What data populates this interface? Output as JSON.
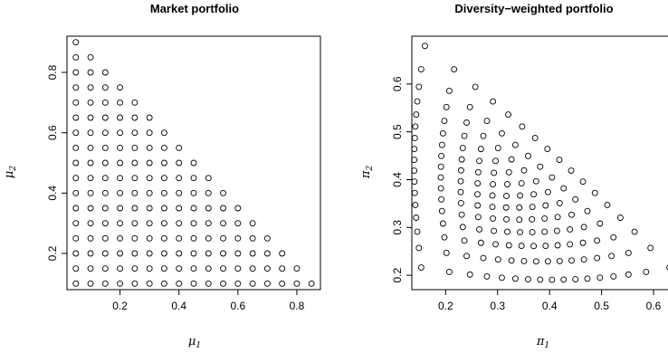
{
  "chart_data": [
    {
      "type": "scatter",
      "title": "Market portfolio",
      "xlabel": "μ",
      "xlabel_sub": "1",
      "ylabel": "μ",
      "ylabel_sub": "2",
      "xlim": [
        0.02,
        0.88
      ],
      "ylim": [
        0.08,
        0.92
      ],
      "xticks": [
        0.2,
        0.4,
        0.6,
        0.8
      ],
      "yticks": [
        0.2,
        0.4,
        0.6,
        0.8
      ],
      "grid": false,
      "points": "triangular grid: mu1 = 0.05..0.85 step 0.05, mu2 = 0.10..0.90 step 0.05, mu1 + mu2 <= 0.95"
    },
    {
      "type": "scatter",
      "title": "Diversity−weighted portfolio",
      "xlabel": "π",
      "xlabel_sub": "1",
      "ylabel": "π",
      "ylabel_sub": "2",
      "xlim": [
        0.135,
        0.64
      ],
      "ylim": [
        0.17,
        0.7
      ],
      "xticks": [
        0.2,
        0.3,
        0.4,
        0.5,
        0.6
      ],
      "yticks": [
        0.2,
        0.3,
        0.4,
        0.5,
        0.6
      ],
      "grid": false,
      "diversity_p": 0.5,
      "points": "diversity-weighted transform of the market-portfolio grid (p = 0.5)"
    }
  ]
}
